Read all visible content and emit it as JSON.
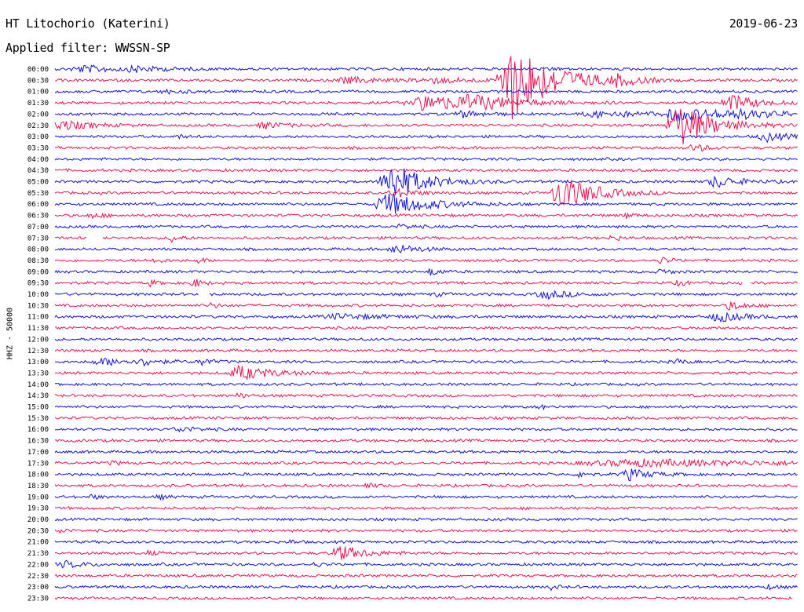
{
  "header": {
    "station": "HT Litochorio (Katerini)",
    "date": "2019-06-23",
    "filter": "Applied filter: WWSSN-SP"
  },
  "chart_data": {
    "type": "line",
    "title": "HT Litochorio (Katerini)",
    "subtitle": "Applied filter: WWSSN-SP",
    "date": "2019-06-23",
    "ylabel": "HHZ - 50000",
    "xlabel": "",
    "row_interval_minutes": 30,
    "x_unit": "minutes within row",
    "xlim": [
      0,
      30
    ],
    "grid": false,
    "legend": "none",
    "colors": [
      "#1010dd",
      "#ee1050"
    ],
    "rows": [
      {
        "label": "00:00",
        "color": "#1010dd",
        "events": [
          {
            "x": 1.2,
            "amp": 4,
            "dur": 1.5
          },
          {
            "x": 3.3,
            "amp": 3,
            "dur": 1.0
          },
          {
            "x": 20.0,
            "amp": 3,
            "dur": 0.3
          }
        ]
      },
      {
        "label": "00:30",
        "color": "#ee1050",
        "events": [
          {
            "x": 11.8,
            "amp": 4,
            "dur": 1.2
          },
          {
            "x": 15.2,
            "amp": 3,
            "dur": 2.0
          },
          {
            "x": 18.5,
            "amp": 50,
            "dur": 1.5
          },
          {
            "x": 22.7,
            "amp": 5,
            "dur": 0.8
          }
        ]
      },
      {
        "label": "01:00",
        "color": "#1010dd",
        "events": [
          {
            "x": 4.5,
            "amp": 2,
            "dur": 0.8
          }
        ]
      },
      {
        "label": "01:30",
        "color": "#ee1050",
        "events": [
          {
            "x": 15.0,
            "amp": 10,
            "dur": 2.0
          },
          {
            "x": 16.8,
            "amp": 7,
            "dur": 1.5
          },
          {
            "x": 27.3,
            "amp": 10,
            "dur": 1.0
          }
        ]
      },
      {
        "label": "02:00",
        "color": "#1010dd",
        "events": [
          {
            "x": 16.5,
            "amp": 4,
            "dur": 0.8
          },
          {
            "x": 22.0,
            "amp": 4,
            "dur": 2.0
          },
          {
            "x": 25.2,
            "amp": 8,
            "dur": 1.5
          },
          {
            "x": 27.5,
            "amp": 4,
            "dur": 2.0
          }
        ]
      },
      {
        "label": "02:30",
        "color": "#ee1050",
        "events": [
          {
            "x": 0.3,
            "amp": 6,
            "dur": 1.0
          },
          {
            "x": 8.5,
            "amp": 4,
            "dur": 0.8
          },
          {
            "x": 25.2,
            "amp": 28,
            "dur": 1.2
          }
        ]
      },
      {
        "label": "03:00",
        "color": "#1010dd",
        "events": [
          {
            "x": 5.0,
            "amp": 2,
            "dur": 0.3
          },
          {
            "x": 28.7,
            "amp": 6,
            "dur": 0.8
          }
        ]
      },
      {
        "label": "03:30",
        "color": "#ee1050",
        "events": [
          {
            "x": 25.8,
            "amp": 5,
            "dur": 0.5
          }
        ]
      },
      {
        "label": "04:00",
        "color": "#1010dd",
        "events": []
      },
      {
        "label": "04:30",
        "color": "#ee1050",
        "events": []
      },
      {
        "label": "05:00",
        "color": "#1010dd",
        "events": [
          {
            "x": 13.6,
            "amp": 24,
            "dur": 1.2
          },
          {
            "x": 26.7,
            "amp": 8,
            "dur": 0.8
          }
        ]
      },
      {
        "label": "05:30",
        "color": "#ee1050",
        "events": [
          {
            "x": 13.8,
            "amp": 5,
            "dur": 0.8
          },
          {
            "x": 20.5,
            "amp": 22,
            "dur": 1.2
          }
        ]
      },
      {
        "label": "06:00",
        "color": "#1010dd",
        "events": [
          {
            "x": 13.5,
            "amp": 14,
            "dur": 1.5
          }
        ]
      },
      {
        "label": "06:30",
        "color": "#ee1050",
        "events": [
          {
            "x": 1.5,
            "amp": 3,
            "dur": 0.5
          },
          {
            "x": 23.0,
            "amp": 4,
            "dur": 0.3
          }
        ]
      },
      {
        "label": "07:00",
        "color": "#1010dd",
        "events": [
          {
            "x": 14.0,
            "amp": 3,
            "dur": 0.5
          }
        ]
      },
      {
        "label": "07:30",
        "color": "#ee1050",
        "gap": [
          1.3,
          1.9
        ],
        "events": [
          {
            "x": 4.7,
            "amp": 5,
            "dur": 0.3
          },
          {
            "x": 22.5,
            "amp": 4,
            "dur": 0.3
          }
        ]
      },
      {
        "label": "08:00",
        "color": "#1010dd",
        "events": [
          {
            "x": 13.8,
            "amp": 6,
            "dur": 0.8
          }
        ]
      },
      {
        "label": "08:30",
        "color": "#ee1050",
        "events": [
          {
            "x": 4.0,
            "amp": 4,
            "dur": 0.3
          },
          {
            "x": 5.8,
            "amp": 3,
            "dur": 0.3
          },
          {
            "x": 24.5,
            "amp": 5,
            "dur": 0.3
          }
        ]
      },
      {
        "label": "09:00",
        "color": "#1010dd",
        "events": [
          {
            "x": 15.2,
            "amp": 6,
            "dur": 0.3
          },
          {
            "x": 24.5,
            "amp": 4,
            "dur": 0.3
          }
        ]
      },
      {
        "label": "09:30",
        "color": "#ee1050",
        "gap": [
          27.8,
          28.1
        ],
        "events": [
          {
            "x": 3.8,
            "amp": 4,
            "dur": 0.3
          },
          {
            "x": 5.6,
            "amp": 6,
            "dur": 0.3
          },
          {
            "x": 25.2,
            "amp": 4,
            "dur": 0.3
          }
        ]
      },
      {
        "label": "10:00",
        "color": "#1010dd",
        "gap": [
          5.8,
          6.2
        ],
        "events": [
          {
            "x": 15.3,
            "amp": 3,
            "dur": 0.3
          },
          {
            "x": 19.8,
            "amp": 5,
            "dur": 1.0
          }
        ]
      },
      {
        "label": "10:30",
        "color": "#ee1050",
        "events": [
          {
            "x": 6.3,
            "amp": 3,
            "dur": 0.3
          },
          {
            "x": 27.3,
            "amp": 6,
            "dur": 0.5
          }
        ]
      },
      {
        "label": "11:00",
        "color": "#1010dd",
        "events": [
          {
            "x": 11.5,
            "amp": 3,
            "dur": 2.0
          },
          {
            "x": 26.8,
            "amp": 6,
            "dur": 1.0
          }
        ]
      },
      {
        "label": "11:30",
        "color": "#ee1050",
        "events": []
      },
      {
        "label": "12:00",
        "color": "#1010dd",
        "events": []
      },
      {
        "label": "12:30",
        "color": "#ee1050",
        "events": []
      },
      {
        "label": "13:00",
        "color": "#1010dd",
        "events": [
          {
            "x": 2.0,
            "amp": 4,
            "dur": 1.5
          },
          {
            "x": 3.6,
            "amp": 5,
            "dur": 0.3
          },
          {
            "x": 5.9,
            "amp": 5,
            "dur": 0.3
          },
          {
            "x": 25.1,
            "amp": 4,
            "dur": 0.3
          }
        ]
      },
      {
        "label": "13:30",
        "color": "#ee1050",
        "events": [
          {
            "x": 7.5,
            "amp": 9,
            "dur": 1.2
          }
        ]
      },
      {
        "label": "14:00",
        "color": "#1010dd",
        "events": []
      },
      {
        "label": "14:30",
        "color": "#ee1050",
        "events": [
          {
            "x": 7.4,
            "amp": 3,
            "dur": 0.3
          }
        ]
      },
      {
        "label": "15:00",
        "color": "#1010dd",
        "events": [
          {
            "x": 19.5,
            "amp": 3,
            "dur": 0.3
          }
        ]
      },
      {
        "label": "15:30",
        "color": "#ee1050",
        "events": []
      },
      {
        "label": "16:00",
        "color": "#1010dd",
        "events": [
          {
            "x": 5.0,
            "amp": 3,
            "dur": 0.8
          }
        ]
      },
      {
        "label": "16:30",
        "color": "#ee1050",
        "events": []
      },
      {
        "label": "17:00",
        "color": "#1010dd",
        "events": []
      },
      {
        "label": "17:30",
        "color": "#ee1050",
        "events": [
          {
            "x": 2.3,
            "amp": 3,
            "dur": 0.3
          },
          {
            "x": 23.5,
            "amp": 4,
            "dur": 6.0
          }
        ]
      },
      {
        "label": "18:00",
        "color": "#1010dd",
        "events": [
          {
            "x": 21.2,
            "amp": 5,
            "dur": 0.3
          },
          {
            "x": 23.2,
            "amp": 7,
            "dur": 0.8
          }
        ]
      },
      {
        "label": "18:30",
        "color": "#ee1050",
        "events": [
          {
            "x": 12.6,
            "amp": 3,
            "dur": 0.3
          }
        ]
      },
      {
        "label": "19:00",
        "color": "#1010dd",
        "events": [
          {
            "x": 1.5,
            "amp": 3,
            "dur": 0.3
          },
          {
            "x": 4.2,
            "amp": 3,
            "dur": 0.3
          }
        ]
      },
      {
        "label": "19:30",
        "color": "#ee1050",
        "events": []
      },
      {
        "label": "20:00",
        "color": "#1010dd",
        "events": []
      },
      {
        "label": "20:30",
        "color": "#ee1050",
        "events": [
          {
            "x": 0.2,
            "amp": 3,
            "dur": 0.3
          }
        ]
      },
      {
        "label": "21:00",
        "color": "#1010dd",
        "events": [
          {
            "x": 9.5,
            "amp": 2,
            "dur": 0.3
          }
        ]
      },
      {
        "label": "21:30",
        "color": "#ee1050",
        "events": [
          {
            "x": 3.8,
            "amp": 3,
            "dur": 0.3
          },
          {
            "x": 11.5,
            "amp": 9,
            "dur": 1.0
          }
        ]
      },
      {
        "label": "22:00",
        "color": "#1010dd",
        "events": [
          {
            "x": 0.4,
            "amp": 4,
            "dur": 0.8
          },
          {
            "x": 10.5,
            "amp": 3,
            "dur": 0.3
          }
        ]
      },
      {
        "label": "22:30",
        "color": "#ee1050",
        "events": []
      },
      {
        "label": "23:00",
        "color": "#1010dd",
        "events": [
          {
            "x": 20.0,
            "amp": 3,
            "dur": 0.3
          },
          {
            "x": 28.8,
            "amp": 3,
            "dur": 0.3
          }
        ]
      },
      {
        "label": "23:30",
        "color": "#ee1050",
        "events": [],
        "end": 29.8
      }
    ]
  }
}
